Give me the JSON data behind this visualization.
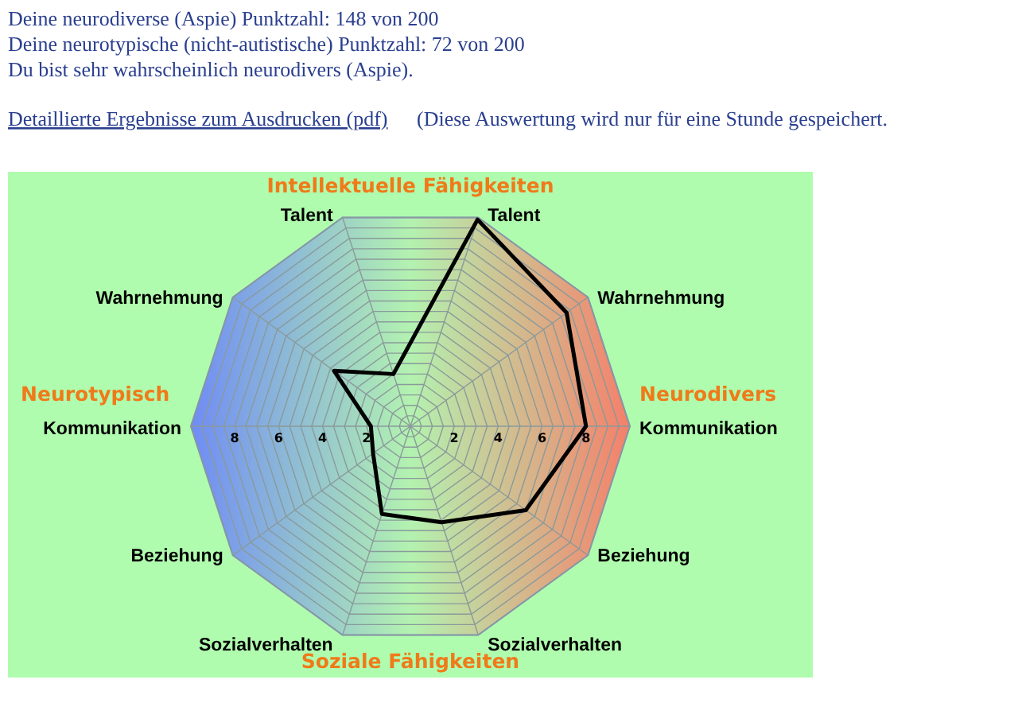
{
  "chart_data": {
    "type": "radar",
    "title": "Deine neurodiverse (Aspie) Punktzahl: 148 von 200",
    "subtitle": "Deine neurotypische (nicht-autistische) Punktzahl: 72 von 200",
    "annotations": [
      "Du bist sehr wahrscheinlich neurodivers (Aspie).",
      "Detaillierte Ergebnisse zum Ausdrucken (pdf)",
      "(Diese Auswertung wird nur für eine Stunde gespeichert.",
      "Intellektuelle Fähigkeiten",
      "Neurodivers",
      "Soziale Fähigkeiten",
      "Neurotypisch"
    ],
    "categories": [
      "Talent",
      "Wahrnehmung",
      "Kommunikation",
      "Beziehung",
      "Sozialverhalten",
      "Sozialverhalten",
      "Beziehung",
      "Kommunikation",
      "Wahrnehmung",
      "Talent"
    ],
    "series": [
      {
        "color": "#000000",
        "values": [
          9.9,
          8.8,
          8,
          6.5,
          4.6,
          4.2,
          2.1,
          1.8,
          4.3,
          2.5
        ]
      }
    ],
    "ylim": [
      0,
      10
    ],
    "yticks": [
      8,
      6,
      4,
      2,
      2,
      4,
      6,
      8
    ],
    "grid": true,
    "marker": "none",
    "line_style": "solid"
  }
}
